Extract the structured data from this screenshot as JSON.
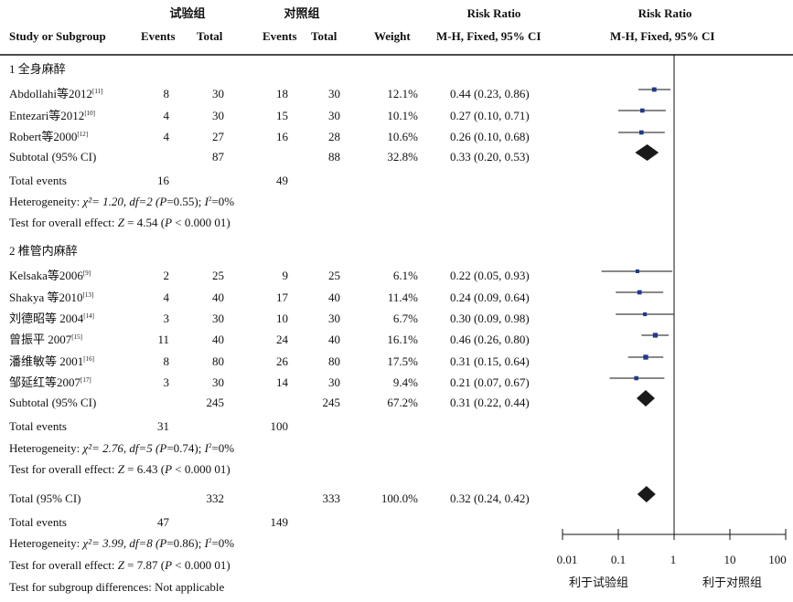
{
  "header": {
    "exp_group": "试验组",
    "ctl_group": "对照组",
    "risk_ratio": "Risk Ratio",
    "risk_ratio_plot": "Risk Ratio",
    "study": "Study or Subgroup",
    "exp_events": "Events",
    "exp_total": "Total",
    "ctl_events": "Events",
    "ctl_total": "Total",
    "weight": "Weight",
    "method": "M-H, Fixed, 95% CI",
    "method_plot": "M-H, Fixed, 95% CI"
  },
  "groups": [
    {
      "title": "1 全身麻醉",
      "studies": [
        {
          "name": "Abdollahi等2012",
          "ref": "[11]",
          "exp_events": "8",
          "exp_total": "30",
          "ctl_events": "18",
          "ctl_total": "30",
          "weight": "12.1%",
          "ci_text": "0.44 (0.23, 0.86)"
        },
        {
          "name": "Entezari等2012",
          "ref": "[10]",
          "exp_events": "4",
          "exp_total": "30",
          "ctl_events": "15",
          "ctl_total": "30",
          "weight": "10.1%",
          "ci_text": "0.27 (0.10, 0.71)"
        },
        {
          "name": "Robert等2000",
          "ref": "[12]",
          "exp_events": "4",
          "exp_total": "27",
          "ctl_events": "16",
          "ctl_total": "28",
          "weight": "10.6%",
          "ci_text": "0.26 (0.10, 0.68)"
        }
      ],
      "subtotal": {
        "label": "Subtotal (95% CI)",
        "exp_total": "87",
        "ctl_total": "88",
        "weight": "32.8%",
        "ci_text": "0.33 (0.20, 0.53)"
      },
      "total_events": {
        "label": "Total events",
        "exp": "16",
        "ctl": "49"
      },
      "heterogeneity": {
        "prefix": "Heterogeneity: ",
        "chi": "χ²= 1.20, df=2 (",
        "p": "P",
        "p_val": "=0.55); ",
        "i": "I",
        "i_sup": "2",
        "i_val": "=0%"
      },
      "overall": {
        "prefix": "Test for overall effect: ",
        "z": "Z",
        "z_val": " = 4.54 (",
        "p": "P",
        "p_val": " < 0.000 01)"
      }
    },
    {
      "title": "2 椎管内麻醉",
      "studies": [
        {
          "name": "Kelsaka等2006",
          "ref": "[9]",
          "exp_events": "2",
          "exp_total": "25",
          "ctl_events": "9",
          "ctl_total": "25",
          "weight": "6.1%",
          "ci_text": "0.22 (0.05, 0.93)"
        },
        {
          "name": "Shakya 等2010",
          "ref": "[13]",
          "exp_events": "4",
          "exp_total": "40",
          "ctl_events": "17",
          "ctl_total": "40",
          "weight": "11.4%",
          "ci_text": "0.24 (0.09, 0.64)"
        },
        {
          "name": "刘德昭等 2004",
          "ref": "[14]",
          "exp_events": "3",
          "exp_total": "30",
          "ctl_events": "10",
          "ctl_total": "30",
          "weight": "6.7%",
          "ci_text": "0.30 (0.09, 0.98)"
        },
        {
          "name": "曾振平 2007",
          "ref": "[15]",
          "exp_events": "11",
          "exp_total": "40",
          "ctl_events": "24",
          "ctl_total": "40",
          "weight": "16.1%",
          "ci_text": "0.46 (0.26, 0.80)"
        },
        {
          "name": "潘维敏等 2001",
          "ref": "[16]",
          "exp_events": "8",
          "exp_total": "80",
          "ctl_events": "26",
          "ctl_total": "80",
          "weight": "17.5%",
          "ci_text": "0.31 (0.15, 0.64)"
        },
        {
          "name": "邹延红等2007",
          "ref": "[17]",
          "exp_events": "3",
          "exp_total": "30",
          "ctl_events": "14",
          "ctl_total": "30",
          "weight": "9.4%",
          "ci_text": "0.21 (0.07, 0.67)"
        }
      ],
      "subtotal": {
        "label": "Subtotal (95% CI)",
        "exp_total": "245",
        "ctl_total": "245",
        "weight": "67.2%",
        "ci_text": "0.31 (0.22, 0.44)"
      },
      "total_events": {
        "label": "Total events",
        "exp": "31",
        "ctl": "100"
      },
      "heterogeneity": {
        "prefix": "Heterogeneity:  ",
        "chi": "χ²= 2.76, df=5 (",
        "p": "P",
        "p_val": "=0.74); ",
        "i": "I",
        "i_sup": "2",
        "i_val": "=0%"
      },
      "overall": {
        "prefix": "Test for overall effect: ",
        "z": "Z",
        "z_val": " = 6.43 (",
        "p": "P",
        "p_val": " < 0.000 01)"
      }
    }
  ],
  "total": {
    "label": "Total (95% CI)",
    "exp_total": "332",
    "ctl_total": "333",
    "weight": "100.0%",
    "ci_text": "0.32 (0.24, 0.42)"
  },
  "total_events": {
    "label": "Total events",
    "exp": "47",
    "ctl": "149"
  },
  "heterogeneity": {
    "prefix": "Heterogeneity: ",
    "chi": "χ²= 3.99, df=8 (",
    "p": "P",
    "p_val": "=0.86); ",
    "i": "I",
    "i_sup": "2",
    "i_val": "=0%"
  },
  "overall": {
    "prefix": "Test for overall effect: ",
    "z": "Z",
    "z_val": " = 7.87 (",
    "p": "P",
    "p_val": " < 0.000 01)"
  },
  "subgroup_diff": "Test for subgroup differences: Not applicable",
  "axis": {
    "ticks": [
      0.01,
      0.1,
      1,
      10,
      100
    ],
    "tick_labels": [
      "0.01",
      "0.1",
      "1",
      "10",
      "100"
    ],
    "favours_left": "利于试验组",
    "favours_right": "利于对照组"
  },
  "chart_data": {
    "type": "forest",
    "x_scale": "log",
    "xlim": [
      0.01,
      100
    ],
    "study_marker_color": "#1f3a8a",
    "diamond_color": "#1a1a1a",
    "studies": [
      {
        "name": "Abdollahi等2012",
        "rr": 0.44,
        "lo": 0.23,
        "hi": 0.86,
        "weight": 12.1
      },
      {
        "name": "Entezari等2012",
        "rr": 0.27,
        "lo": 0.1,
        "hi": 0.71,
        "weight": 10.1
      },
      {
        "name": "Robert等2000",
        "rr": 0.26,
        "lo": 0.1,
        "hi": 0.68,
        "weight": 10.6
      },
      {
        "name": "Kelsaka等2006",
        "rr": 0.22,
        "lo": 0.05,
        "hi": 0.93,
        "weight": 6.1
      },
      {
        "name": "Shakya 等2010",
        "rr": 0.24,
        "lo": 0.09,
        "hi": 0.64,
        "weight": 11.4
      },
      {
        "name": "刘德昭等 2004",
        "rr": 0.3,
        "lo": 0.09,
        "hi": 0.98,
        "weight": 6.7
      },
      {
        "name": "曾振平 2007",
        "rr": 0.46,
        "lo": 0.26,
        "hi": 0.8,
        "weight": 16.1
      },
      {
        "name": "潘维敏等 2001",
        "rr": 0.31,
        "lo": 0.15,
        "hi": 0.64,
        "weight": 17.5
      },
      {
        "name": "邹延红等2007",
        "rr": 0.21,
        "lo": 0.07,
        "hi": 0.67,
        "weight": 9.4
      }
    ],
    "diamonds": [
      {
        "name": "Subtotal 1 全身麻醉",
        "rr": 0.33,
        "lo": 0.2,
        "hi": 0.53
      },
      {
        "name": "Subtotal 2 椎管内麻醉",
        "rr": 0.31,
        "lo": 0.22,
        "hi": 0.44
      },
      {
        "name": "Total",
        "rr": 0.32,
        "lo": 0.24,
        "hi": 0.42
      }
    ]
  }
}
